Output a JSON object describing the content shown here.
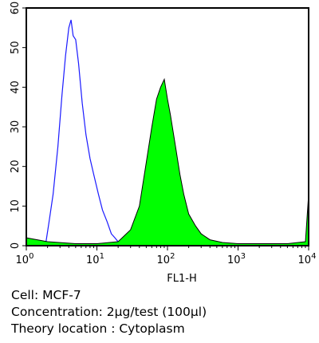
{
  "chart_data": {
    "type": "area",
    "xlabel": "FL1-H",
    "x_scale": "log",
    "xlim": [
      1,
      10000
    ],
    "ylim": [
      0,
      60
    ],
    "y_ticks": [
      "0",
      "10",
      "20",
      "30",
      "40",
      "50",
      "60"
    ],
    "x_ticks": [
      {
        "base": "10",
        "exp": "0"
      },
      {
        "base": "10",
        "exp": "1"
      },
      {
        "base": "10",
        "exp": "2"
      },
      {
        "base": "10",
        "exp": "3"
      },
      {
        "base": "10",
        "exp": "4"
      }
    ],
    "series": [
      {
        "style": "outline",
        "color": "#1a1aff",
        "x": [
          1,
          1.6,
          1.9,
          2.1,
          2.4,
          2.8,
          3.2,
          3.6,
          4.0,
          4.3,
          4.6,
          5.0,
          5.5,
          6.2,
          7.0,
          8.0,
          9.0,
          10.5,
          12,
          14,
          16,
          18,
          20,
          22,
          25,
          30
        ],
        "y": [
          0,
          0,
          1,
          6,
          13,
          25,
          38,
          48,
          55,
          57,
          53,
          52,
          46,
          36,
          28,
          22,
          18,
          13,
          9,
          6,
          3,
          2,
          1,
          0.5,
          0,
          0
        ]
      },
      {
        "style": "filled",
        "color": "#00ff00",
        "x": [
          1,
          2,
          5,
          10,
          20,
          30,
          40,
          50,
          60,
          70,
          80,
          90,
          100,
          110,
          130,
          150,
          170,
          200,
          250,
          300,
          400,
          600,
          1000,
          2000,
          5000,
          9000,
          10000
        ],
        "y": [
          2,
          1,
          0.5,
          0.5,
          1,
          4,
          10,
          21,
          30,
          37,
          40,
          42,
          37,
          33,
          25,
          18,
          13,
          8,
          5,
          3,
          1.5,
          0.8,
          0.5,
          0.5,
          0.5,
          1,
          13
        ]
      }
    ]
  },
  "caption": {
    "cell": "Cell: MCF-7",
    "concentration": "Concentration: 2µg/test (100µl)",
    "location": "Theory location : Cytoplasm"
  }
}
